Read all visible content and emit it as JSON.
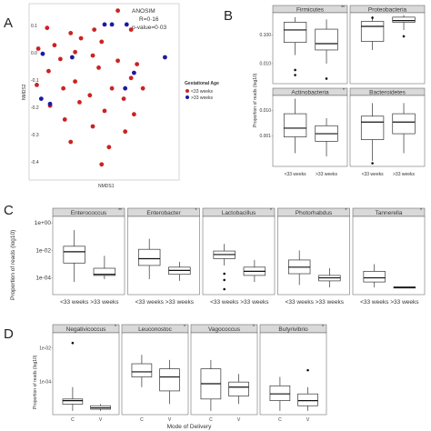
{
  "panel_labels": [
    "A",
    "B",
    "C",
    "D"
  ],
  "chart_data": [
    {
      "id": "A",
      "type": "scatter",
      "xlabel": "NMDS1",
      "ylabel": "NMDS2",
      "annotation": [
        "ANOSIM",
        "R=0·16",
        "p-value=0·03"
      ],
      "legend": {
        "title": "Gestational Age",
        "items": [
          {
            "label": "<33 weeks",
            "color": "#cc2222"
          },
          {
            "label": ">33 weeks",
            "color": "#1a1aa0"
          }
        ]
      },
      "xlim": [
        0,
        1
      ],
      "ylim": [
        0,
        1
      ],
      "ticks_y": [
        "0.1",
        "0.0",
        "-0.1",
        "-0.2",
        "-0.3",
        "-0.4"
      ],
      "series": [
        {
          "color": "#cc2222",
          "points": [
            [
              0.59,
              0.97
            ],
            [
              0.11,
              0.87
            ],
            [
              0.43,
              0.86
            ],
            [
              0.68,
              0.86
            ],
            [
              0.27,
              0.84
            ],
            [
              0.34,
              0.81
            ],
            [
              0.48,
              0.79
            ],
            [
              0.16,
              0.77
            ],
            [
              0.05,
              0.75
            ],
            [
              0.3,
              0.73
            ],
            [
              0.42,
              0.71
            ],
            [
              0.2,
              0.69
            ],
            [
              0.59,
              0.68
            ],
            [
              0.72,
              0.66
            ],
            [
              0.46,
              0.64
            ],
            [
              0.12,
              0.62
            ],
            [
              0.68,
              0.58
            ],
            [
              0.3,
              0.56
            ],
            [
              0.04,
              0.54
            ],
            [
              0.55,
              0.52
            ],
            [
              0.22,
              0.52
            ],
            [
              0.76,
              0.52
            ],
            [
              0.4,
              0.48
            ],
            [
              0.63,
              0.46
            ],
            [
              0.33,
              0.44
            ],
            [
              0.13,
              0.42
            ],
            [
              0.5,
              0.39
            ],
            [
              0.7,
              0.37
            ],
            [
              0.23,
              0.34
            ],
            [
              0.42,
              0.3
            ],
            [
              0.64,
              0.27
            ],
            [
              0.27,
              0.21
            ],
            [
              0.53,
              0.18
            ],
            [
              0.48,
              0.08
            ]
          ]
        },
        {
          "color": "#1a1aa0",
          "points": [
            [
              0.5,
              0.89
            ],
            [
              0.55,
              0.89
            ],
            [
              0.65,
              0.89
            ],
            [
              0.08,
              0.72
            ],
            [
              0.28,
              0.7
            ],
            [
              0.91,
              0.7
            ],
            [
              0.7,
              0.61
            ],
            [
              0.07,
              0.46
            ],
            [
              0.13,
              0.43
            ],
            [
              0.64,
              0.52
            ]
          ]
        }
      ]
    },
    {
      "id": "B",
      "type": "box",
      "ylabel": "Proportion of reads (log10)",
      "groups": [
        "<33 weeks",
        ">33 weeks"
      ],
      "yticks": [
        {
          "label": "0.100",
          "v": 0.1
        },
        {
          "label": "0.010",
          "v": 0.01
        },
        {
          "label": "0.001",
          "v": 0.001
        }
      ],
      "facets": [
        {
          "name": "Firmicutes",
          "sig": "**",
          "row": 0,
          "boxes": [
            {
              "q1": 0.055,
              "med": 0.15,
              "q3": 0.28,
              "lo": 0.02,
              "hi": 0.42,
              "out": [
                0.006,
                0.004
              ]
            },
            {
              "q1": 0.03,
              "med": 0.05,
              "q3": 0.16,
              "lo": 0.01,
              "hi": 0.35,
              "out": [
                0.003
              ]
            }
          ]
        },
        {
          "name": "Proteobacteria",
          "sig": "",
          "row": 0,
          "boxes": [
            {
              "q1": 0.06,
              "med": 0.2,
              "q3": 0.3,
              "lo": 0.03,
              "hi": 0.45,
              "out": [
                0.4
              ]
            },
            {
              "q1": 0.28,
              "med": 0.32,
              "q3": 0.42,
              "lo": 0.15,
              "hi": 0.5,
              "out": [
                0.09
              ]
            }
          ]
        },
        {
          "name": "Actinobacteria",
          "sig": "*",
          "row": 1,
          "boxes": [
            {
              "q1": 0.0009,
              "med": 0.002,
              "q3": 0.0075,
              "lo": 0.0002,
              "hi": 0.03,
              "out": []
            },
            {
              "q1": 0.0006,
              "med": 0.0012,
              "q3": 0.0025,
              "lo": 0.00015,
              "hi": 0.005,
              "out": []
            }
          ]
        },
        {
          "name": "Bacteroidetes",
          "sig": "",
          "row": 1,
          "boxes": [
            {
              "q1": 0.0007,
              "med": 0.0035,
              "q3": 0.006,
              "lo": 0.0001,
              "hi": 0.02,
              "out": [
                8e-05
              ]
            },
            {
              "q1": 0.0012,
              "med": 0.0035,
              "q3": 0.0075,
              "lo": 0.0002,
              "hi": 0.02,
              "out": []
            }
          ]
        }
      ]
    },
    {
      "id": "C",
      "type": "box",
      "ylabel": "Proportion of reads (log10)",
      "groups": [
        "<33 weeks",
        ">33 weeks"
      ],
      "yticks": [
        {
          "label": "1e+00",
          "v": 1
        },
        {
          "label": "1e-02",
          "v": 0.01
        },
        {
          "label": "1e-04",
          "v": 0.0001
        }
      ],
      "facets": [
        {
          "name": "Enterococcus",
          "sig": "**",
          "boxes": [
            {
              "q1": 0.0012,
              "med": 0.008,
              "q3": 0.02,
              "lo": 5e-05,
              "hi": 0.3,
              "out": []
            },
            {
              "q1": 0.00015,
              "med": 0.00018,
              "q3": 0.0005,
              "lo": 8e-05,
              "hi": 0.004,
              "out": []
            }
          ]
        },
        {
          "name": "Enterobacter",
          "sig": "*",
          "boxes": [
            {
              "q1": 0.0008,
              "med": 0.0025,
              "q3": 0.012,
              "lo": 8e-05,
              "hi": 0.07,
              "out": []
            },
            {
              "q1": 0.00018,
              "med": 0.00035,
              "q3": 0.0006,
              "lo": 6e-05,
              "hi": 0.0015,
              "out": []
            }
          ]
        },
        {
          "name": "Lactobacillus",
          "sig": "*",
          "boxes": [
            {
              "q1": 0.0025,
              "med": 0.005,
              "q3": 0.009,
              "lo": 0.0008,
              "hi": 0.03,
              "out": [
                0.0002,
                7e-05,
                1.5e-05
              ]
            },
            {
              "q1": 0.00015,
              "med": 0.0003,
              "q3": 0.0006,
              "lo": 5e-05,
              "hi": 0.002,
              "out": []
            }
          ]
        },
        {
          "name": "Photorhabdus",
          "sig": "*",
          "boxes": [
            {
              "q1": 0.0002,
              "med": 0.0006,
              "q3": 0.002,
              "lo": 3e-05,
              "hi": 0.01,
              "out": []
            },
            {
              "q1": 6e-05,
              "med": 0.0001,
              "q3": 0.00015,
              "lo": 2e-05,
              "hi": 0.0005,
              "out": []
            }
          ]
        },
        {
          "name": "Tannerella",
          "sig": "*",
          "boxes": [
            {
              "q1": 5e-05,
              "med": 0.0001,
              "q3": 0.0003,
              "lo": 2e-05,
              "hi": 0.001,
              "out": []
            },
            {
              "q1": 1.8e-05,
              "med": 2e-05,
              "q3": 2.2e-05,
              "lo": 1.8e-05,
              "hi": 2.2e-05,
              "out": []
            }
          ]
        }
      ]
    },
    {
      "id": "D",
      "type": "box",
      "ylabel": "Proportion of reads (log10)",
      "xlabel": "Mode of Delivery",
      "groups": [
        "C",
        "V"
      ],
      "yticks": [
        {
          "label": "1e-02",
          "v": 0.01
        },
        {
          "label": "1e-04",
          "v": 0.0001
        }
      ],
      "facets": [
        {
          "name": "Negativicoccus",
          "sig": "*",
          "boxes": [
            {
              "q1": 5e-06,
              "med": 8e-06,
              "q3": 1e-05,
              "lo": 2e-06,
              "hi": 5e-05,
              "out": [
                0.02
              ]
            },
            {
              "q1": 2.5e-06,
              "med": 3e-06,
              "q3": 4e-06,
              "lo": 2e-06,
              "hi": 5e-06,
              "out": []
            }
          ]
        },
        {
          "name": "Leuconostoc",
          "sig": "*",
          "boxes": [
            {
              "q1": 0.0002,
              "med": 0.0004,
              "q3": 0.0012,
              "lo": 5e-05,
              "hi": 0.004,
              "out": []
            },
            {
              "q1": 3e-05,
              "med": 0.0002,
              "q3": 0.0006,
              "lo": 5e-06,
              "hi": 0.002,
              "out": []
            }
          ]
        },
        {
          "name": "Vagococcus",
          "sig": "*",
          "boxes": [
            {
              "q1": 1e-05,
              "med": 8e-05,
              "q3": 0.0006,
              "lo": 2e-06,
              "hi": 0.002,
              "out": []
            },
            {
              "q1": 1.5e-05,
              "med": 5e-05,
              "q3": 0.0001,
              "lo": 5e-06,
              "hi": 0.0003,
              "out": []
            }
          ]
        },
        {
          "name": "Butyrivibrio",
          "sig": "*",
          "boxes": [
            {
              "q1": 8e-06,
              "med": 2e-05,
              "q3": 6e-05,
              "lo": 2e-06,
              "hi": 0.0002,
              "out": []
            },
            {
              "q1": 4e-06,
              "med": 8e-06,
              "q3": 2e-05,
              "lo": 2e-06,
              "hi": 5e-05,
              "out": [
                0.0005
              ]
            }
          ]
        }
      ]
    }
  ]
}
